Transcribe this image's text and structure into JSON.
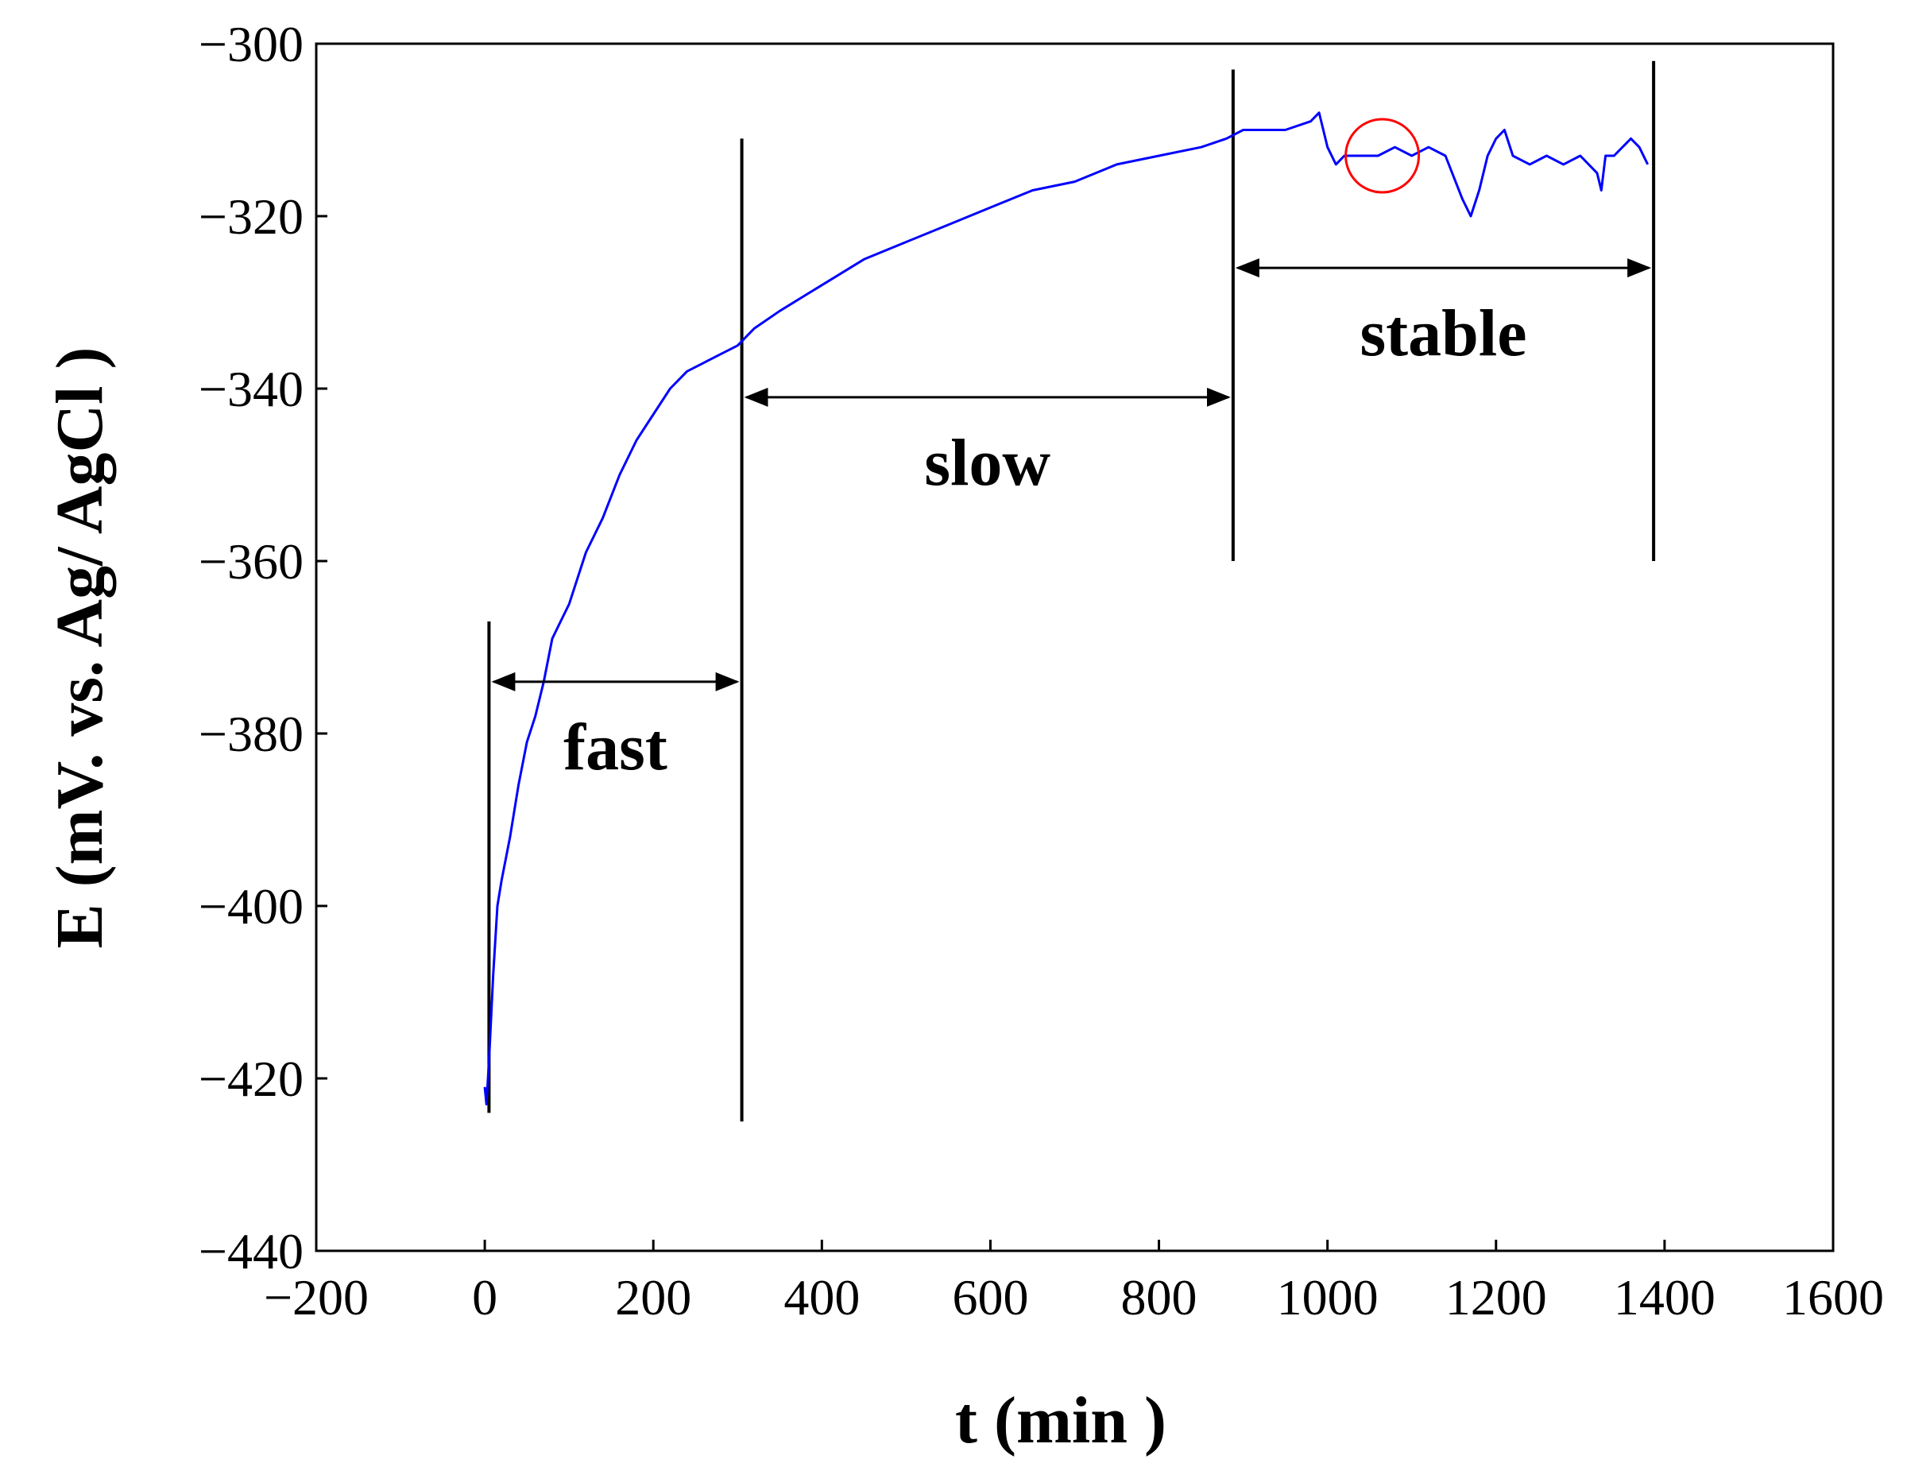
{
  "chart_data": {
    "type": "line",
    "title": "",
    "xlabel": "t (min )",
    "ylabel": "E (mV. vs. Ag/ AgCl )",
    "xlim": [
      -200,
      1600
    ],
    "ylim": [
      -440,
      -300
    ],
    "xticks": [
      -200,
      0,
      200,
      400,
      600,
      800,
      1000,
      1200,
      1400,
      1600
    ],
    "yticks": [
      -300,
      -320,
      -340,
      -360,
      -380,
      -400,
      -420,
      -440
    ],
    "xtick_labels": [
      "−200",
      "0",
      "200",
      "400",
      "600",
      "800",
      "1000",
      "1200",
      "1400",
      "1600"
    ],
    "ytick_labels": [
      "−300",
      "−320",
      "−340",
      "−360",
      "−380",
      "−400",
      "−420",
      "−440"
    ],
    "grid": false,
    "series_color": "#0000ff",
    "series": [
      {
        "x": [
          0,
          2,
          5,
          10,
          15,
          20,
          30,
          40,
          50,
          60,
          70,
          80,
          90,
          100,
          120,
          140,
          160,
          180,
          200,
          220,
          240,
          260,
          280,
          300,
          320,
          350,
          400,
          450,
          500,
          550,
          600,
          650,
          700,
          750,
          800,
          850,
          880,
          900,
          920,
          950,
          980,
          990,
          1000,
          1010,
          1020,
          1040,
          1060,
          1080,
          1100,
          1120,
          1140,
          1160,
          1170,
          1180,
          1190,
          1200,
          1210,
          1220,
          1240,
          1260,
          1280,
          1300,
          1320,
          1325,
          1330,
          1340,
          1360,
          1370,
          1380
        ],
        "y": [
          -421,
          -423,
          -418,
          -408,
          -400,
          -397,
          -392,
          -386,
          -381,
          -378,
          -374,
          -369,
          -367,
          -365,
          -359,
          -355,
          -350,
          -346,
          -343,
          -340,
          -338,
          -337,
          -336,
          -335,
          -333,
          -331,
          -328,
          -325,
          -323,
          -321,
          -319,
          -317,
          -316,
          -314,
          -313,
          -312,
          -311,
          -310,
          -310,
          -310,
          -309,
          -308,
          -312,
          -314,
          -313,
          -313,
          -313,
          -312,
          -313,
          -312,
          -313,
          -318,
          -320,
          -317,
          -313,
          -311,
          -310,
          -313,
          -314,
          -313,
          -314,
          -313,
          -315,
          -317,
          -313,
          -313,
          -311,
          -312,
          -314
        ]
      }
    ],
    "phase_boundaries_x": [
      5,
      305,
      888,
      1387
    ],
    "phases": [
      {
        "label": "fast",
        "from": 5,
        "to": 305,
        "arrow_y": -374
      },
      {
        "label": "slow",
        "from": 305,
        "to": 888,
        "arrow_y": -341
      },
      {
        "label": "stable",
        "from": 888,
        "to": 1387,
        "arrow_y": -326
      }
    ],
    "highlight": {
      "x": 1065,
      "y": -313,
      "color": "#ff0000"
    }
  }
}
